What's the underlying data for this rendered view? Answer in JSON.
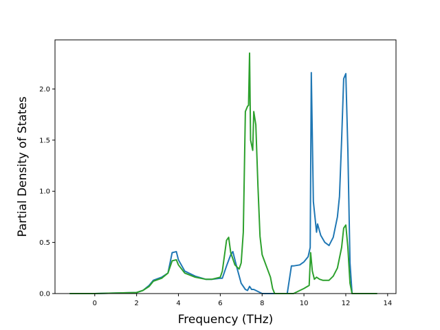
{
  "chart_data": {
    "type": "line",
    "title": "",
    "xlabel": "Frequency (THz)",
    "ylabel": "Partial Density of States",
    "xlim": [
      -1.9,
      14.4
    ],
    "ylim": [
      0,
      2.48
    ],
    "xticks": [
      0,
      2,
      4,
      6,
      8,
      10,
      12,
      14
    ],
    "xtick_labels": [
      "0",
      "2",
      "4",
      "6",
      "8",
      "10",
      "12",
      "14"
    ],
    "yticks": [
      0.0,
      0.5,
      1.0,
      1.5,
      2.0
    ],
    "ytick_labels": [
      "0.0",
      "0.5",
      "1.0",
      "1.5",
      "2.0"
    ],
    "grid": false,
    "legend": "none",
    "series": [
      {
        "color": "#1f77b4",
        "x": [
          -1.2,
          0.0,
          1.0,
          2.0,
          2.3,
          2.6,
          2.8,
          3.2,
          3.5,
          3.7,
          3.9,
          4.0,
          4.3,
          4.8,
          5.3,
          5.6,
          6.0,
          6.1,
          6.3,
          6.5,
          6.6,
          6.8,
          7.0,
          7.2,
          7.3,
          7.4,
          7.5,
          7.6,
          7.8,
          8.0,
          8.3,
          8.5,
          8.7,
          9.2,
          9.4,
          9.5,
          9.8,
          10.0,
          10.2,
          10.3,
          10.35,
          10.45,
          10.6,
          10.65,
          10.8,
          11.0,
          11.2,
          11.4,
          11.6,
          11.7,
          11.8,
          11.9,
          12.0,
          12.1,
          12.2,
          12.3,
          13.5
        ],
        "y": [
          0.0,
          0.0,
          0.005,
          0.01,
          0.03,
          0.08,
          0.13,
          0.16,
          0.2,
          0.4,
          0.41,
          0.33,
          0.22,
          0.17,
          0.14,
          0.14,
          0.15,
          0.15,
          0.27,
          0.38,
          0.41,
          0.25,
          0.1,
          0.04,
          0.03,
          0.07,
          0.04,
          0.04,
          0.02,
          0.0,
          0.0,
          0.0,
          0.0,
          0.0,
          0.27,
          0.27,
          0.28,
          0.31,
          0.36,
          0.45,
          2.16,
          0.9,
          0.6,
          0.68,
          0.57,
          0.5,
          0.47,
          0.55,
          0.75,
          0.95,
          1.5,
          2.1,
          2.15,
          1.4,
          0.3,
          0.0,
          0.0
        ]
      },
      {
        "color": "#2ca02c",
        "x": [
          -1.2,
          0.0,
          1.0,
          2.0,
          2.3,
          2.6,
          2.8,
          3.2,
          3.5,
          3.7,
          3.9,
          4.0,
          4.3,
          4.8,
          5.3,
          5.6,
          6.0,
          6.1,
          6.3,
          6.4,
          6.5,
          6.7,
          6.9,
          7.0,
          7.1,
          7.2,
          7.3,
          7.35,
          7.4,
          7.45,
          7.55,
          7.6,
          7.7,
          7.8,
          7.9,
          8.0,
          8.2,
          8.4,
          8.5,
          8.6,
          9.0,
          9.5,
          10.0,
          10.25,
          10.32,
          10.4,
          10.5,
          10.6,
          10.75,
          10.9,
          11.2,
          11.4,
          11.6,
          11.8,
          11.9,
          12.0,
          12.1,
          12.2,
          12.3,
          13.5
        ],
        "y": [
          0.0,
          0.0,
          0.005,
          0.01,
          0.03,
          0.07,
          0.12,
          0.15,
          0.2,
          0.32,
          0.33,
          0.28,
          0.2,
          0.16,
          0.14,
          0.14,
          0.16,
          0.22,
          0.52,
          0.55,
          0.4,
          0.28,
          0.24,
          0.3,
          0.6,
          1.78,
          1.83,
          1.84,
          2.35,
          1.5,
          1.4,
          1.78,
          1.65,
          1.05,
          0.56,
          0.38,
          0.27,
          0.16,
          0.05,
          0.0,
          0.0,
          0.0,
          0.05,
          0.08,
          0.4,
          0.22,
          0.14,
          0.16,
          0.14,
          0.13,
          0.13,
          0.17,
          0.25,
          0.45,
          0.64,
          0.67,
          0.45,
          0.1,
          0.0,
          0.0
        ]
      }
    ]
  }
}
